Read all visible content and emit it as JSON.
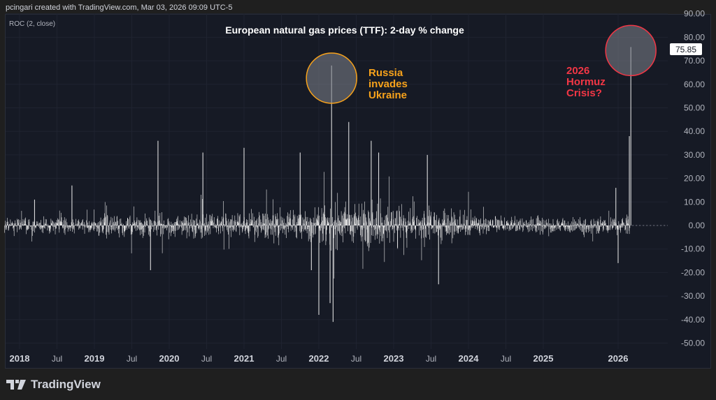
{
  "credit": "pcingari created with TradingView.com, Mar 03, 2026 09:09 UTC-5",
  "logo": "TradingView",
  "indicator_label": "ROC (2, close)",
  "chart_data": {
    "type": "bar",
    "title": "European natural gas prices (TTF): 2-day % change",
    "ylim": [
      -50,
      90
    ],
    "y_ticks": [
      "90.00",
      "80.00",
      "70.00",
      "60.00",
      "50.00",
      "40.00",
      "30.00",
      "20.00",
      "10.00",
      "0.00",
      "-10.00",
      "-20.00",
      "-30.00",
      "-40.00",
      "-50.00"
    ],
    "y_tick_values": [
      90,
      80,
      70,
      60,
      50,
      40,
      30,
      20,
      10,
      0,
      -10,
      -20,
      -30,
      -40,
      -50
    ],
    "x_ticks": [
      "2018",
      "Jul",
      "2019",
      "Jul",
      "2020",
      "Jul",
      "2021",
      "Jul",
      "2022",
      "Jul",
      "2023",
      "Jul",
      "2024",
      "Jul",
      "2025",
      "2026"
    ],
    "x_tick_values": [
      2018,
      2018.5,
      2019,
      2019.5,
      2020,
      2020.5,
      2021,
      2021.5,
      2022,
      2022.5,
      2023,
      2023.5,
      2024,
      2024.5,
      2025,
      2026
    ],
    "xlim": [
      2017.8,
      2026.65
    ],
    "yearly_volatility": {
      "2017": 4,
      "2018": 4,
      "2019": 6,
      "2020": 6,
      "2021": 8,
      "2022": 12,
      "2023": 8,
      "2024": 5,
      "2025": 4,
      "2026": 4
    },
    "notable_points": [
      {
        "x": 2018.2,
        "y": 11
      },
      {
        "x": 2018.7,
        "y": 17
      },
      {
        "x": 2019.85,
        "y": 36
      },
      {
        "x": 2019.75,
        "y": -19
      },
      {
        "x": 2020.45,
        "y": 31
      },
      {
        "x": 2021.0,
        "y": 33
      },
      {
        "x": 2021.75,
        "y": 31
      },
      {
        "x": 2021.9,
        "y": -19
      },
      {
        "x": 2022.0,
        "y": -38
      },
      {
        "x": 2022.17,
        "y": 68
      },
      {
        "x": 2022.19,
        "y": -41
      },
      {
        "x": 2022.15,
        "y": -33
      },
      {
        "x": 2022.4,
        "y": 44
      },
      {
        "x": 2022.7,
        "y": 36
      },
      {
        "x": 2022.8,
        "y": 31
      },
      {
        "x": 2023.45,
        "y": 30
      },
      {
        "x": 2023.6,
        "y": -25
      },
      {
        "x": 2026.0,
        "y": -16
      },
      {
        "x": 2025.97,
        "y": 16
      },
      {
        "x": 2026.15,
        "y": 38
      },
      {
        "x": 2026.17,
        "y": 75.85
      }
    ],
    "last_value": "75.85",
    "annotations": [
      {
        "text": [
          "Russia",
          "invades",
          "Ukraine"
        ],
        "color": "#f7a21b",
        "x": 2022.17,
        "y": 65
      },
      {
        "text": [
          "2026",
          "Hormuz",
          "Crisis?"
        ],
        "color": "#f23645",
        "x": 2026.17,
        "y": 75.85
      }
    ]
  }
}
